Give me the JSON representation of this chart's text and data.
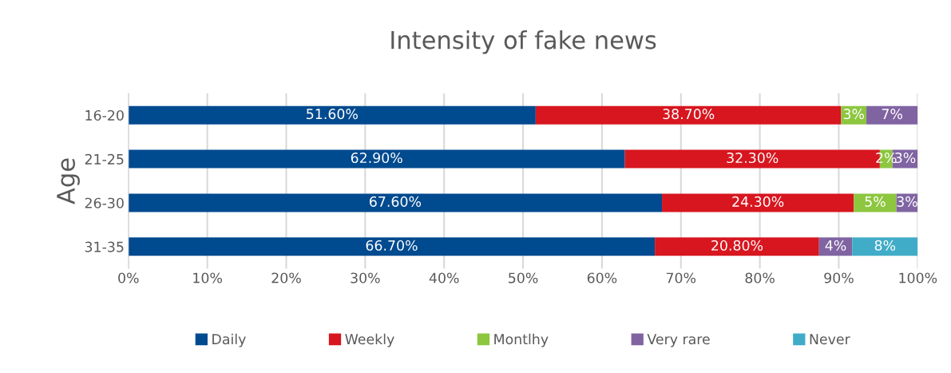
{
  "chart_data": {
    "type": "bar",
    "orientation": "horizontal",
    "stacked": true,
    "title": "Intensity of fake news",
    "ylabel": "Age",
    "categories": [
      "16-20",
      "21-25",
      "26-30",
      "31-35"
    ],
    "series": [
      {
        "name": "Daily",
        "color": "#004a8f",
        "values": [
          51.6,
          62.9,
          67.6,
          66.7
        ],
        "value_labels": [
          "51.60%",
          "62.90%",
          "67.60%",
          "66.70%"
        ]
      },
      {
        "name": "Weekly",
        "color": "#d7161f",
        "values": [
          38.7,
          32.3,
          24.3,
          20.8
        ],
        "value_labels": [
          "38.70%",
          "32.30%",
          "24.30%",
          "20.80%"
        ]
      },
      {
        "name": "Montlhy",
        "color": "#8dc63f",
        "values": [
          3.2,
          1.6,
          5.4,
          0
        ],
        "value_labels": [
          "3%",
          "2%",
          "5%",
          null
        ]
      },
      {
        "name": "Very rare",
        "color": "#8064a2",
        "values": [
          6.5,
          3.2,
          2.7,
          4.2
        ],
        "value_labels": [
          "7%",
          "3%",
          "3%",
          "4%"
        ]
      },
      {
        "name": "Never",
        "color": "#41acc8",
        "values": [
          0,
          0,
          0,
          8.3
        ],
        "value_labels": [
          null,
          null,
          null,
          "8%"
        ]
      }
    ],
    "xlim": [
      0,
      100
    ],
    "xticks": [
      {
        "value": 0,
        "label": "0%"
      },
      {
        "value": 10,
        "label": "10%"
      },
      {
        "value": 20,
        "label": "20%"
      },
      {
        "value": 30,
        "label": "30%"
      },
      {
        "value": 40,
        "label": "40%"
      },
      {
        "value": 50,
        "label": "50%"
      },
      {
        "value": 60,
        "label": "60%"
      },
      {
        "value": 70,
        "label": "70%"
      },
      {
        "value": 80,
        "label": "80%"
      },
      {
        "value": 90,
        "label": "90%"
      },
      {
        "value": 100,
        "label": "100%"
      }
    ],
    "grid": "x",
    "legend": "bottom"
  }
}
